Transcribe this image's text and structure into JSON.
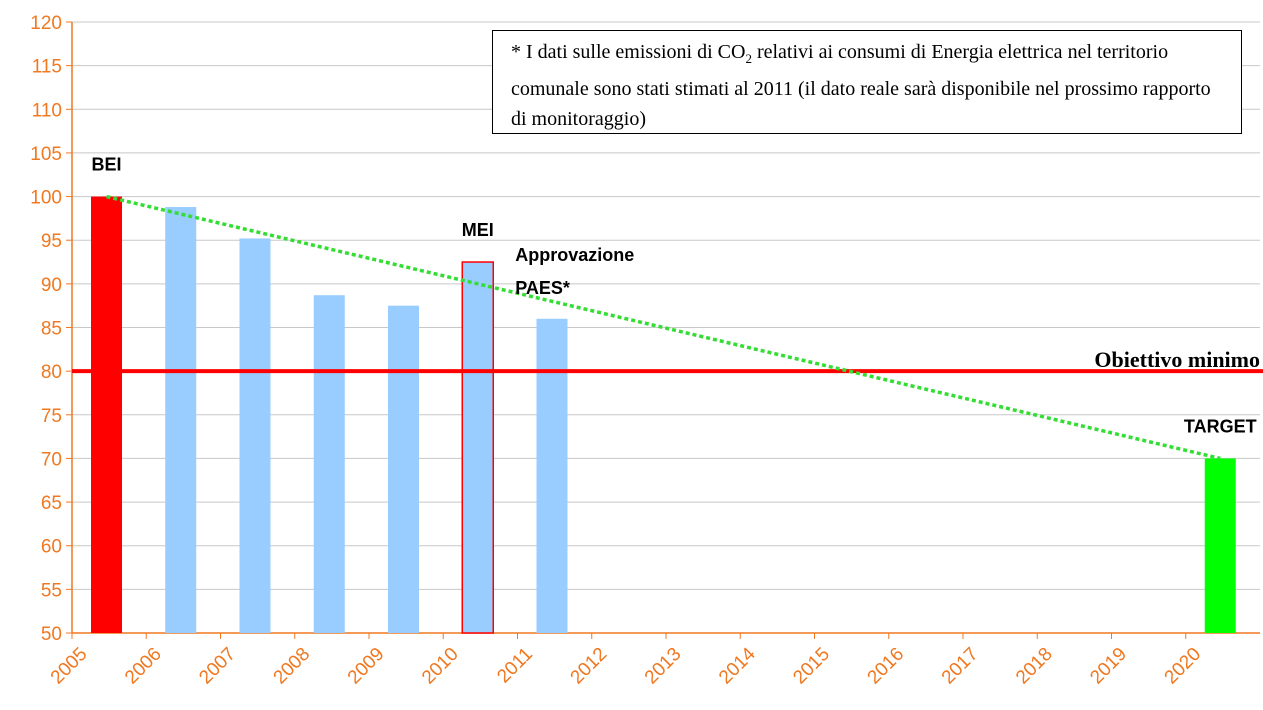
{
  "chart_data": {
    "type": "bar",
    "categories": [
      "2005",
      "2006",
      "2007",
      "2008",
      "2009",
      "2010",
      "2011",
      "2012",
      "2013",
      "2014",
      "2015",
      "2016",
      "2017",
      "2018",
      "2019",
      "2020"
    ],
    "values": [
      100,
      98.8,
      95.2,
      88.7,
      87.5,
      92.5,
      86,
      null,
      null,
      null,
      null,
      null,
      null,
      null,
      null,
      70
    ],
    "colors": [
      "#ff0000",
      "#99ccff",
      "#99ccff",
      "#99ccff",
      "#99ccff",
      "#99ccff",
      "#99ccff",
      null,
      null,
      null,
      null,
      null,
      null,
      null,
      null,
      "#00ff00"
    ],
    "edge_colors": [
      null,
      null,
      null,
      null,
      null,
      "#ff0000",
      null,
      null,
      null,
      null,
      null,
      null,
      null,
      null,
      null,
      null
    ],
    "ylim": [
      50,
      120
    ],
    "yticks": [
      50,
      55,
      60,
      65,
      70,
      75,
      80,
      85,
      90,
      95,
      100,
      105,
      110,
      115,
      120
    ],
    "grid": true,
    "axis_color": "#f07820",
    "reference_line": {
      "value": 80,
      "label": "Obiettivo minimo",
      "color": "#ff0000"
    },
    "trend_line": {
      "color": "#33dd33"
    },
    "annotations": [
      {
        "category": "2005",
        "lines": [
          "BEI"
        ]
      },
      {
        "category": "2010",
        "lines": [
          "MEI"
        ]
      },
      {
        "category": "2010",
        "lines": [
          "Approvazione",
          "PAES*"
        ],
        "side": "right"
      },
      {
        "category": "2020",
        "lines": [
          "TARGET"
        ]
      }
    ],
    "note": {
      "parts": [
        "* I dati sulle emissioni di CO",
        "2",
        " relativi ai consumi di Energia elettrica nel territorio comunale sono stati stimati al 2011 (il dato reale sarà disponibile nel prossimo rapporto di monitoraggio)"
      ]
    }
  }
}
